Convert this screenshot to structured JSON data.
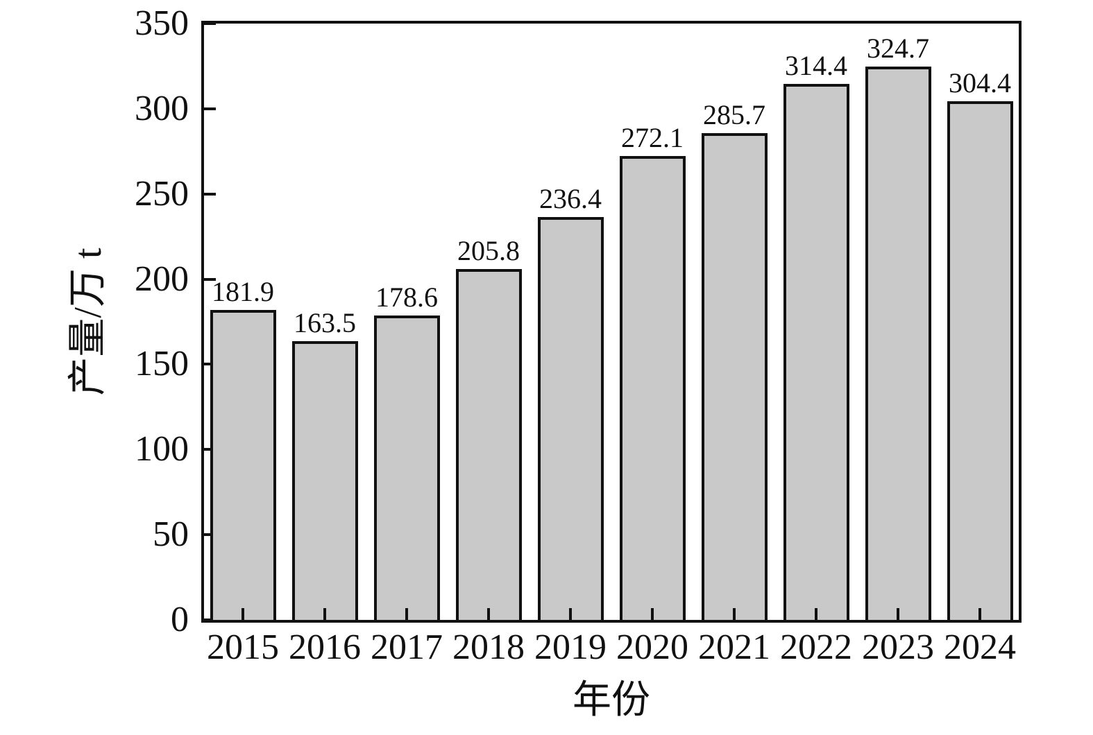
{
  "chart_data": {
    "type": "bar",
    "categories": [
      "2015",
      "2016",
      "2017",
      "2018",
      "2019",
      "2020",
      "2021",
      "2022",
      "2023",
      "2024"
    ],
    "values": [
      181.9,
      163.5,
      178.6,
      205.8,
      236.4,
      272.1,
      285.7,
      314.4,
      324.7,
      304.4
    ],
    "value_labels": [
      "181.9",
      "163.5",
      "178.6",
      "205.8",
      "236.4",
      "272.1",
      "285.7",
      "314.4",
      "324.7",
      "304.4"
    ],
    "xlabel": "年份",
    "ylabel": "产量/万 t",
    "ylim": [
      0,
      350
    ],
    "yticks": [
      0,
      50,
      100,
      150,
      200,
      250,
      300,
      350
    ],
    "grid": "off",
    "legend": "none",
    "tick_direction": "in",
    "bar_fill_color": "#c9c9c9",
    "bar_edge_color": "#111111",
    "axis_color": "#111111",
    "background_color": "#ffffff"
  }
}
